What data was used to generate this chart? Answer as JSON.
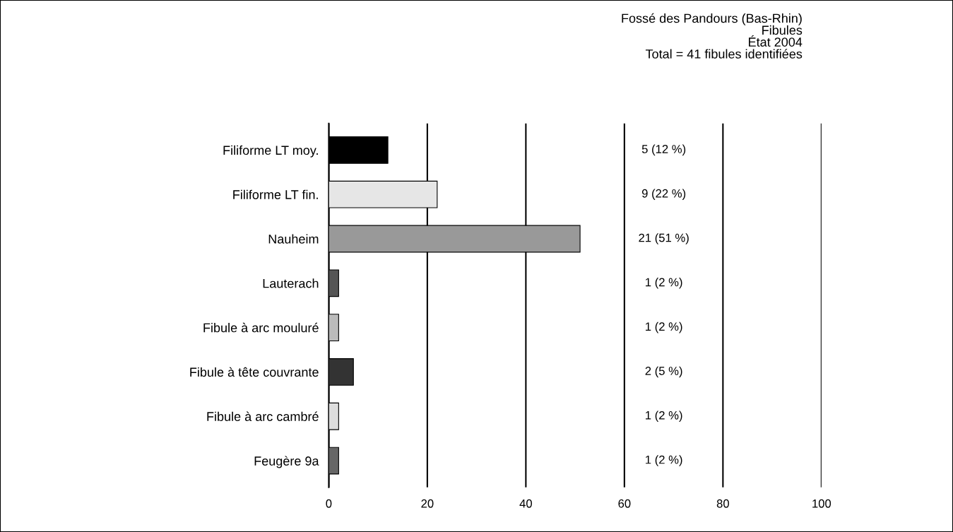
{
  "chart_data": {
    "type": "bar",
    "orientation": "horizontal",
    "title": "Fossé des Pandours (Bas-Rhin)\nFibules\nÉtat 2004\nTotal = 41 fibules identifiées",
    "categories": [
      "Filiforme LT moy.",
      "Filiforme LT fin.",
      "Nauheim",
      "Lauterach",
      "Fibule à arc mouluré",
      "Fibule à tête couvrante",
      "Fibule à arc cambré",
      "Feugère 9a"
    ],
    "values": [
      12,
      22,
      51,
      2,
      2,
      5,
      2,
      2
    ],
    "colors": [
      "#000000",
      "#e6e6e6",
      "#999999",
      "#555555",
      "#bbbbbb",
      "#333333",
      "#dddddd",
      "#666666"
    ],
    "value_labels": [
      "5 (12 %)",
      "9 (22 %)",
      "21 (51 %)",
      "1 (2 %)",
      "1 (2 %)",
      "2 (5 %)",
      "1 (2 %)",
      "1 (2 %)"
    ],
    "xlim": [
      0,
      100
    ],
    "xticks": [
      0,
      20,
      40,
      60,
      80,
      100
    ],
    "grid": "x"
  }
}
